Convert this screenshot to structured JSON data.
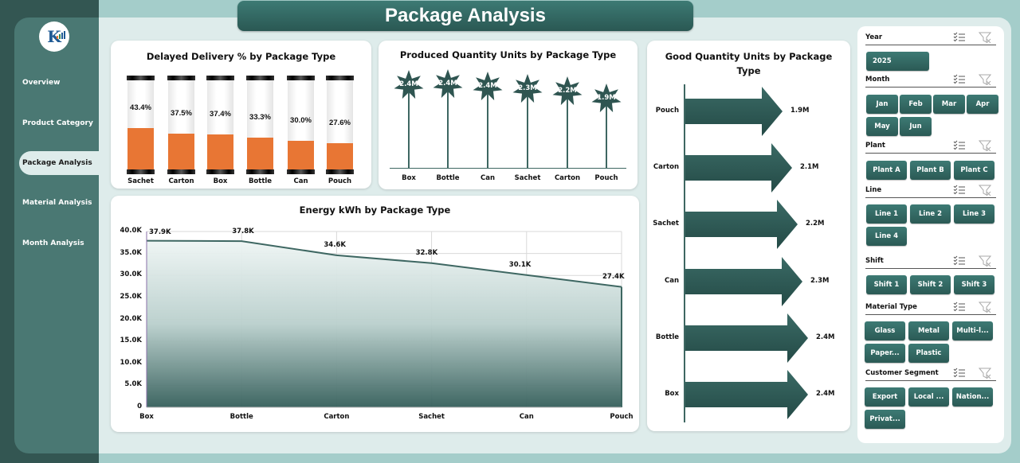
{
  "header": {
    "title": "Package Analysis"
  },
  "sidebar": {
    "items": [
      {
        "label": "Overview",
        "active": false
      },
      {
        "label": "Product Category",
        "active": false
      },
      {
        "label": "Package Analysis",
        "active": true
      },
      {
        "label": "Material Analysis",
        "active": false
      },
      {
        "label": "Month Analysis",
        "active": false
      }
    ]
  },
  "colors": {
    "primary": "#2f5d59",
    "accent": "#e87634",
    "sidebar": "#4a7873",
    "background": "#deeceb"
  },
  "charts": {
    "delayed": {
      "title": "Delayed Delivery % by Package Type"
    },
    "produced": {
      "title": "Produced Quantity Units by Package Type"
    },
    "good": {
      "title": "Good Quantity Units by Package",
      "title2": "Type"
    },
    "energy": {
      "title": "Energy kWh by Package Type"
    }
  },
  "chart_data": [
    {
      "type": "bar",
      "title": "Delayed Delivery % by Package Type",
      "categories": [
        "Sachet",
        "Carton",
        "Box",
        "Bottle",
        "Can",
        "Pouch"
      ],
      "values": [
        43.4,
        37.5,
        37.4,
        33.3,
        30.0,
        27.6
      ],
      "labels": [
        "43.4%",
        "37.5%",
        "37.4%",
        "33.3%",
        "30.0%",
        "27.6%"
      ],
      "unit": "%",
      "ylim": [
        0,
        100
      ]
    },
    {
      "type": "bar",
      "title": "Produced Quantity Units by Package Type",
      "categories": [
        "Box",
        "Bottle",
        "Can",
        "Sachet",
        "Carton",
        "Pouch"
      ],
      "values": [
        2.4,
        2.4,
        2.4,
        2.3,
        2.2,
        1.9
      ],
      "labels": [
        "2.4M",
        "2.4M",
        "2.4M",
        "2.3M",
        "2.2M",
        "1.9M"
      ],
      "unit": "M"
    },
    {
      "type": "bar",
      "orientation": "horizontal",
      "title": "Good Quantity Units by Package Type",
      "categories": [
        "Pouch",
        "Carton",
        "Sachet",
        "Can",
        "Bottle",
        "Box"
      ],
      "values": [
        1.9,
        2.1,
        2.2,
        2.3,
        2.4,
        2.4
      ],
      "labels": [
        "1.9M",
        "2.1M",
        "2.2M",
        "2.3M",
        "2.4M",
        "2.4M"
      ],
      "unit": "M"
    },
    {
      "type": "area",
      "title": "Energy kWh by Package Type",
      "categories": [
        "Box",
        "Bottle",
        "Carton",
        "Sachet",
        "Can",
        "Pouch"
      ],
      "values": [
        37.9,
        37.8,
        34.6,
        32.8,
        30.1,
        27.4
      ],
      "labels": [
        "37.9K",
        "37.8K",
        "34.6K",
        "32.8K",
        "30.1K",
        "27.4K"
      ],
      "yticks": [
        "0",
        "5.0K",
        "10.0K",
        "15.0K",
        "20.0K",
        "25.0K",
        "30.0K",
        "35.0K",
        "40.0K"
      ],
      "ylim": [
        0,
        40
      ],
      "grid": true,
      "unit": "K"
    }
  ],
  "slicers": {
    "year": {
      "label": "Year",
      "options": [
        "2025"
      ]
    },
    "month": {
      "label": "Month",
      "options": [
        "Jan",
        "Feb",
        "Mar",
        "Apr",
        "May",
        "Jun"
      ]
    },
    "plant": {
      "label": "Plant",
      "options": [
        "Plant A",
        "Plant B",
        "Plant C"
      ]
    },
    "line": {
      "label": "Line",
      "options": [
        "Line 1",
        "Line 2",
        "Line 3",
        "Line 4"
      ]
    },
    "shift": {
      "label": "Shift",
      "options": [
        "Shift 1",
        "Shift 2",
        "Shift 3"
      ]
    },
    "material": {
      "label": "Material Type",
      "options": [
        "Glass",
        "Metal",
        "Multi-l...",
        "Paper...",
        "Plastic"
      ]
    },
    "segment": {
      "label": "Customer Segment",
      "options": [
        "Export",
        "Local ...",
        "Nation...",
        "Privat..."
      ]
    }
  }
}
